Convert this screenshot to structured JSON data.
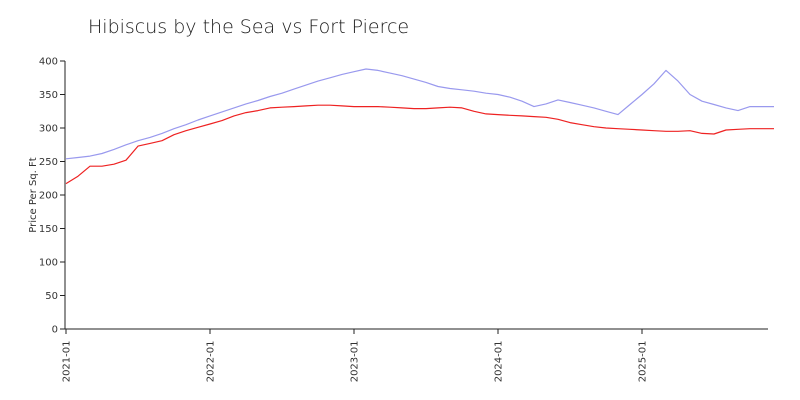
{
  "chart_data": {
    "type": "line",
    "title": "Hibiscus by  the Sea vs Fort Pierce",
    "xlabel": "",
    "ylabel": "Price Per Sq. Ft",
    "ylim": [
      0,
      400
    ],
    "yticks": [
      0,
      50,
      100,
      150,
      200,
      250,
      300,
      350,
      400
    ],
    "xlim": [
      "2021-01",
      "2025-12"
    ],
    "xticks": [
      "2021-01",
      "2022-01",
      "2023-01",
      "2024-01",
      "2025-01"
    ],
    "grid": false,
    "legend": "none",
    "x": [
      "2021-01",
      "2021-02",
      "2021-03",
      "2021-04",
      "2021-05",
      "2021-06",
      "2021-07",
      "2021-08",
      "2021-09",
      "2021-10",
      "2021-11",
      "2021-12",
      "2022-01",
      "2022-02",
      "2022-03",
      "2022-04",
      "2022-05",
      "2022-06",
      "2022-07",
      "2022-08",
      "2022-09",
      "2022-10",
      "2022-11",
      "2022-12",
      "2023-01",
      "2023-02",
      "2023-03",
      "2023-04",
      "2023-05",
      "2023-06",
      "2023-07",
      "2023-08",
      "2023-09",
      "2023-10",
      "2023-11",
      "2023-12",
      "2024-01",
      "2024-02",
      "2024-03",
      "2024-04",
      "2024-05",
      "2024-06",
      "2024-07",
      "2024-08",
      "2024-09",
      "2024-10",
      "2024-11",
      "2024-12",
      "2025-01",
      "2025-02",
      "2025-03",
      "2025-04",
      "2025-05",
      "2025-06",
      "2025-07",
      "2025-08",
      "2025-09",
      "2025-10",
      "2025-11",
      "2025-12"
    ],
    "series": [
      {
        "color": "#9999ee",
        "values": [
          254,
          256,
          258,
          262,
          268,
          275,
          281,
          286,
          292,
          299,
          305,
          312,
          318,
          324,
          330,
          336,
          341,
          347,
          352,
          358,
          364,
          370,
          375,
          380,
          384,
          388,
          386,
          382,
          378,
          373,
          368,
          362,
          359,
          357,
          355,
          352,
          350,
          346,
          340,
          332,
          336,
          342,
          338,
          334,
          330,
          325,
          320,
          335,
          350,
          366,
          386,
          370,
          350,
          340,
          335,
          330,
          326,
          332,
          332,
          332
        ]
      },
      {
        "color": "#ee2222",
        "values": [
          217,
          228,
          243,
          243,
          246,
          252,
          273,
          277,
          281,
          290,
          296,
          301,
          306,
          311,
          318,
          323,
          326,
          330,
          331,
          332,
          333,
          334,
          334,
          333,
          332,
          332,
          332,
          331,
          330,
          329,
          329,
          330,
          331,
          330,
          325,
          321,
          320,
          319,
          318,
          317,
          316,
          313,
          308,
          305,
          302,
          300,
          299,
          298,
          297,
          296,
          295,
          295,
          296,
          292,
          291,
          297,
          298,
          299,
          299,
          299
        ]
      }
    ]
  }
}
